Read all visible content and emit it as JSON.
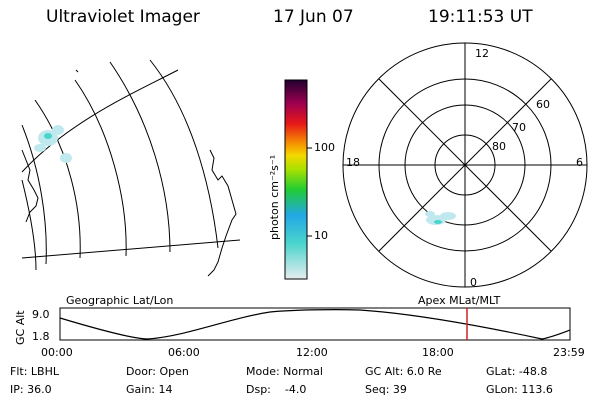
{
  "header": {
    "title": "Ultraviolet Imager",
    "date": "17 Jun 07",
    "time": "19:11:53 UT"
  },
  "colorbar": {
    "unit_label": "photon cm⁻²s⁻¹",
    "ticks": [
      "100",
      "10"
    ]
  },
  "polar_plot": {
    "mlt_labels": [
      "12",
      "18",
      "6",
      "0"
    ],
    "lat_labels": [
      "60",
      "70",
      "80"
    ]
  },
  "panel_labels": {
    "geographic": "Geographic Lat/Lon",
    "apex": "Apex MLat/MLT"
  },
  "altitude_plot": {
    "ylabel": "GC Alt",
    "yticks": [
      "9.0",
      "1.8"
    ],
    "xticks": [
      "00:00",
      "06:00",
      "12:00",
      "18:00",
      "23:59"
    ],
    "marker_color": "#cc2222"
  },
  "footer": {
    "row1": [
      "Flt: LBHL",
      "Door: Open",
      "Mode: Normal",
      "GC Alt: 6.0 Re",
      "GLat: -48.8"
    ],
    "row2": [
      "IP: 36.0",
      "Gain: 14",
      "Dsp:    -4.0",
      "Seq: 39",
      "GLon: 113.6"
    ]
  },
  "colors": {
    "aurora": "#bfe9ee",
    "bar_stops": [
      "#e6ecef",
      "#49d4cc",
      "#23a8e6",
      "#22cc33",
      "#a8e000",
      "#f3d800",
      "#f59300",
      "#e81818",
      "#a00050",
      "#200030"
    ]
  }
}
